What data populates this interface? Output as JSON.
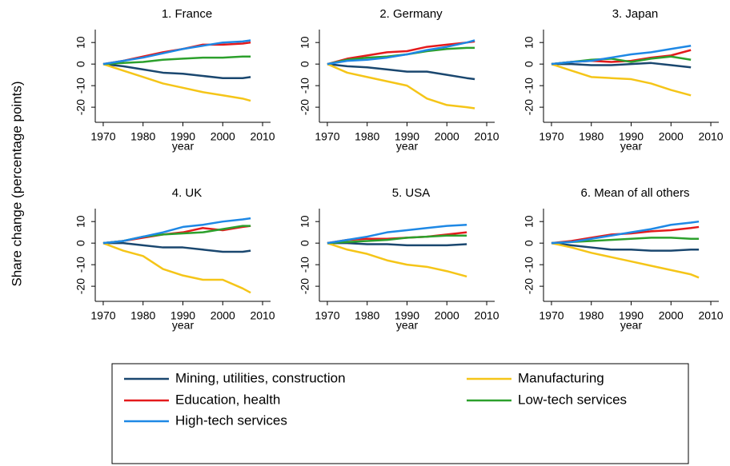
{
  "ylabel": "Share change (percentage points)",
  "chart_data": [
    {
      "type": "line",
      "title": "1. France",
      "xlabel": "year",
      "x": [
        1970,
        1975,
        1980,
        1985,
        1990,
        1995,
        2000,
        2005,
        2007
      ],
      "xlim": [
        1968,
        2012
      ],
      "xticks": [
        1970,
        1980,
        1990,
        2000,
        2010
      ],
      "ylim": [
        -27,
        16
      ],
      "yticks": [
        -20,
        -10,
        0,
        10
      ],
      "series": [
        {
          "name": "Mining, utilities, construction",
          "color": "#1a476f",
          "values": [
            0,
            -1,
            -2.5,
            -4,
            -4.5,
            -5.5,
            -6.5,
            -6.5,
            -6
          ]
        },
        {
          "name": "Manufacturing",
          "color": "#f5c518",
          "values": [
            0,
            -3,
            -6,
            -9,
            -11,
            -13,
            -14.5,
            -16,
            -17
          ]
        },
        {
          "name": "Education, health",
          "color": "#e41a1c",
          "values": [
            0,
            1.5,
            3.5,
            5.5,
            7,
            9,
            9,
            9.5,
            10
          ]
        },
        {
          "name": "Low-tech services",
          "color": "#2ca02c",
          "values": [
            0,
            0.5,
            1,
            2,
            2.5,
            3,
            3,
            3.5,
            3.5
          ]
        },
        {
          "name": "High-tech services",
          "color": "#1e88e5",
          "values": [
            0,
            1.5,
            3,
            5,
            7,
            8.5,
            10,
            10.5,
            11
          ]
        }
      ]
    },
    {
      "type": "line",
      "title": "2. Germany",
      "xlabel": "year",
      "x": [
        1970,
        1975,
        1980,
        1985,
        1990,
        1995,
        2000,
        2005,
        2007
      ],
      "xlim": [
        1968,
        2012
      ],
      "xticks": [
        1970,
        1980,
        1990,
        2000,
        2010
      ],
      "ylim": [
        -27,
        16
      ],
      "yticks": [
        -20,
        -10,
        0,
        10
      ],
      "series": [
        {
          "name": "Mining, utilities, construction",
          "color": "#1a476f",
          "values": [
            0,
            -1,
            -1.5,
            -2.5,
            -3.5,
            -3.5,
            -5,
            -6.5,
            -7
          ]
        },
        {
          "name": "Manufacturing",
          "color": "#f5c518",
          "values": [
            0,
            -4,
            -6,
            -8,
            -10,
            -16,
            -19,
            -20,
            -20.5
          ]
        },
        {
          "name": "Education, health",
          "color": "#e41a1c",
          "values": [
            0,
            2.5,
            4,
            5.5,
            6,
            8,
            9,
            10,
            10.5
          ]
        },
        {
          "name": "Low-tech services",
          "color": "#2ca02c",
          "values": [
            0,
            2,
            3,
            3.5,
            4.5,
            6,
            7,
            7.5,
            7.5
          ]
        },
        {
          "name": "High-tech services",
          "color": "#1e88e5",
          "values": [
            0,
            1.5,
            2,
            3,
            4.5,
            6.5,
            8,
            10,
            11
          ]
        }
      ]
    },
    {
      "type": "line",
      "title": "3. Japan",
      "xlabel": "year",
      "x": [
        1970,
        1975,
        1980,
        1985,
        1990,
        1995,
        2000,
        2005,
        2007
      ],
      "xlim": [
        1968,
        2012
      ],
      "xticks": [
        1970,
        1980,
        1990,
        2000,
        2010
      ],
      "ylim": [
        -27,
        16
      ],
      "yticks": [
        -20,
        -10,
        0,
        10
      ],
      "series": [
        {
          "name": "Mining, utilities, construction",
          "color": "#1a476f",
          "values": [
            0,
            0,
            -0.5,
            -0.5,
            0,
            0.5,
            -0.5,
            -1.5,
            null
          ]
        },
        {
          "name": "Manufacturing",
          "color": "#f5c518",
          "values": [
            0,
            -3,
            -6,
            -6.5,
            -7,
            -9,
            -12,
            -14.5,
            null
          ]
        },
        {
          "name": "Education, health",
          "color": "#e41a1c",
          "values": [
            0,
            1,
            1.5,
            1,
            1.5,
            3,
            4,
            6.5,
            null
          ]
        },
        {
          "name": "Low-tech services",
          "color": "#2ca02c",
          "values": [
            0,
            1,
            2,
            2.5,
            1,
            2.5,
            3.5,
            2,
            null
          ]
        },
        {
          "name": "High-tech services",
          "color": "#1e88e5",
          "values": [
            0,
            1,
            1.5,
            3,
            4.5,
            5.5,
            7,
            8.5,
            null
          ]
        }
      ]
    },
    {
      "type": "line",
      "title": "4. UK",
      "xlabel": "year",
      "x": [
        1970,
        1975,
        1980,
        1985,
        1990,
        1995,
        2000,
        2005,
        2007
      ],
      "xlim": [
        1968,
        2012
      ],
      "xticks": [
        1970,
        1980,
        1990,
        2000,
        2010
      ],
      "ylim": [
        -27,
        16
      ],
      "yticks": [
        -20,
        -10,
        0,
        10
      ],
      "series": [
        {
          "name": "Mining, utilities, construction",
          "color": "#1a476f",
          "values": [
            0,
            0,
            -1,
            -2,
            -2,
            -3,
            -4,
            -4,
            -3.5
          ]
        },
        {
          "name": "Manufacturing",
          "color": "#f5c518",
          "values": [
            0,
            -3.5,
            -6,
            -12,
            -15,
            -17,
            -17,
            -21,
            -23
          ]
        },
        {
          "name": "Education, health",
          "color": "#e41a1c",
          "values": [
            0,
            1,
            2.5,
            4,
            5,
            7,
            6,
            7.5,
            8
          ]
        },
        {
          "name": "Low-tech services",
          "color": "#2ca02c",
          "values": [
            0,
            1,
            3,
            4,
            4.5,
            5,
            6.5,
            8,
            8
          ]
        },
        {
          "name": "High-tech services",
          "color": "#1e88e5",
          "values": [
            0,
            1,
            3,
            5,
            7.5,
            8.5,
            10,
            11,
            11.5
          ]
        }
      ]
    },
    {
      "type": "line",
      "title": "5. USA",
      "xlabel": "year",
      "x": [
        1970,
        1975,
        1980,
        1985,
        1990,
        1995,
        2000,
        2005,
        2007
      ],
      "xlim": [
        1968,
        2012
      ],
      "xticks": [
        1970,
        1980,
        1990,
        2000,
        2010
      ],
      "ylim": [
        -27,
        16
      ],
      "yticks": [
        -20,
        -10,
        0,
        10
      ],
      "series": [
        {
          "name": "Mining, utilities, construction",
          "color": "#1a476f",
          "values": [
            0,
            0,
            -0.5,
            -0.5,
            -1,
            -1,
            -1,
            -0.5,
            null
          ]
        },
        {
          "name": "Manufacturing",
          "color": "#f5c518",
          "values": [
            0,
            -3,
            -5,
            -8,
            -10,
            -11,
            -13,
            -15.5,
            null
          ]
        },
        {
          "name": "Education, health",
          "color": "#e41a1c",
          "values": [
            0,
            1.5,
            2,
            2,
            2.5,
            3,
            4,
            5,
            null
          ]
        },
        {
          "name": "Low-tech services",
          "color": "#2ca02c",
          "values": [
            0,
            0.5,
            1,
            1.5,
            2.5,
            3,
            3.5,
            3.5,
            null
          ]
        },
        {
          "name": "High-tech services",
          "color": "#1e88e5",
          "values": [
            0,
            1.5,
            3,
            5,
            6,
            7,
            8,
            8.5,
            null
          ]
        }
      ]
    },
    {
      "type": "line",
      "title": "6. Mean of all others",
      "xlabel": "year",
      "x": [
        1970,
        1975,
        1980,
        1985,
        1990,
        1995,
        2000,
        2005,
        2007
      ],
      "xlim": [
        1968,
        2012
      ],
      "xticks": [
        1970,
        1980,
        1990,
        2000,
        2010
      ],
      "ylim": [
        -27,
        16
      ],
      "yticks": [
        -20,
        -10,
        0,
        10
      ],
      "series": [
        {
          "name": "Mining, utilities, construction",
          "color": "#1a476f",
          "values": [
            0,
            -1,
            -2,
            -3,
            -3,
            -3.5,
            -3.5,
            -3,
            -3
          ]
        },
        {
          "name": "Manufacturing",
          "color": "#f5c518",
          "values": [
            0,
            -2,
            -4.5,
            -6.5,
            -8.5,
            -10.5,
            -12.5,
            -14.5,
            -16
          ]
        },
        {
          "name": "Education, health",
          "color": "#e41a1c",
          "values": [
            0,
            1,
            2.5,
            4,
            4.5,
            5.5,
            6,
            7,
            7.5
          ]
        },
        {
          "name": "Low-tech services",
          "color": "#2ca02c",
          "values": [
            0,
            0.5,
            1,
            1.5,
            2,
            2.5,
            2.5,
            2,
            2
          ]
        },
        {
          "name": "High-tech services",
          "color": "#1e88e5",
          "values": [
            0,
            0.5,
            2,
            3.5,
            5,
            6.5,
            8.5,
            9.5,
            10
          ]
        }
      ]
    }
  ]
}
